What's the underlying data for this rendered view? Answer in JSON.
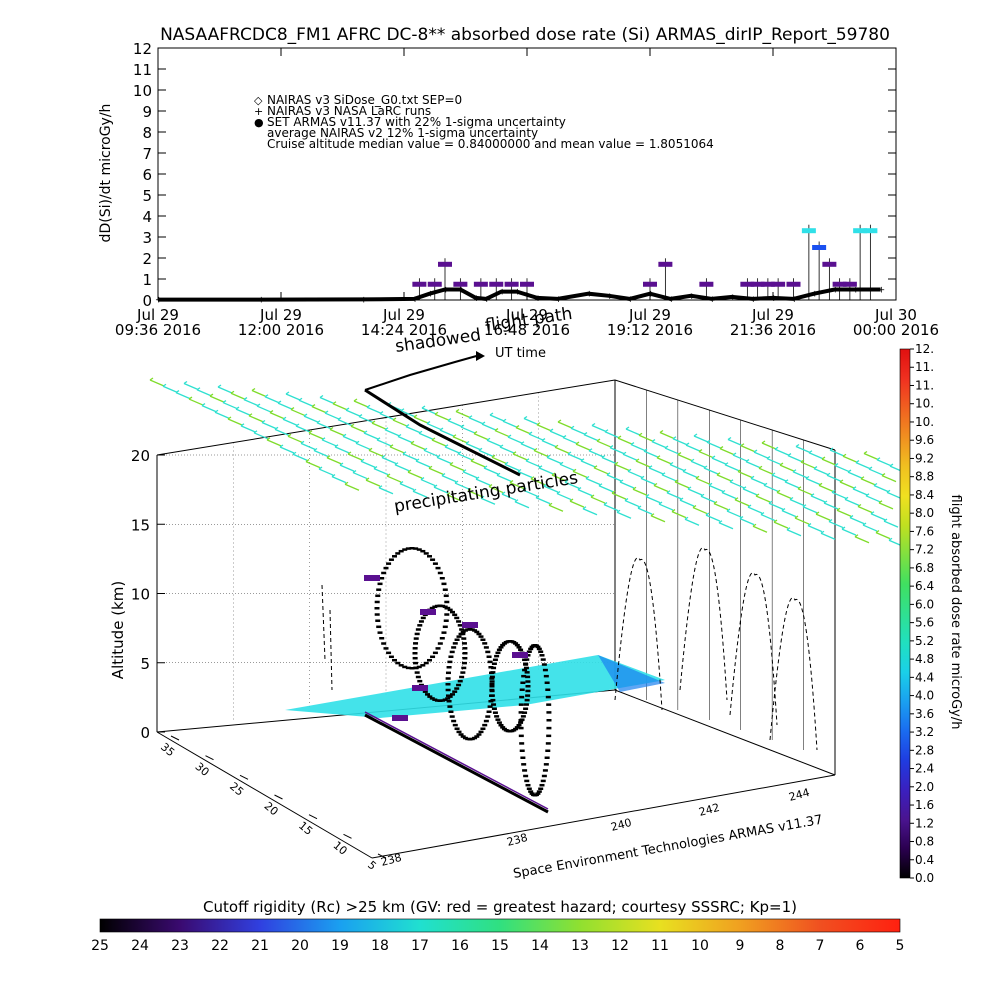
{
  "title": "NASAAFRCDC8_FM1 AFRC DC-8** absorbed dose rate (Si) ARMAS_dirIP_Report_59780",
  "top_chart": {
    "ylabel": "dD(Si)/dt microGy/h",
    "yticks": [
      "0",
      "1",
      "2",
      "3",
      "4",
      "5",
      "6",
      "7",
      "8",
      "9",
      "10",
      "11",
      "12"
    ],
    "xticks": [
      {
        "line1": "Jul 29",
        "line2": "09:36 2016"
      },
      {
        "line1": "Jul 29",
        "line2": "12:00 2016"
      },
      {
        "line1": "Jul 29",
        "line2": "14:24 2016"
      },
      {
        "line1": "Jul 29",
        "line2": "16:48 2016"
      },
      {
        "line1": "Jul 29",
        "line2": "19:12 2016"
      },
      {
        "line1": "Jul 29",
        "line2": "21:36 2016"
      },
      {
        "line1": "Jul 30",
        "line2": "00:00 2016"
      }
    ],
    "legend": [
      {
        "symbol": "◇",
        "text": "NAIRAS v3 SiDose_G0.txt SEP=0"
      },
      {
        "symbol": "+",
        "text": "NAIRAS v3 NASA LaRC runs"
      },
      {
        "symbol": "●",
        "text": "SET ARMAS v11.37 with 22% 1-sigma uncertainty"
      },
      {
        "symbol": "",
        "text": "average NAIRAS v2 12% 1-sigma uncertainty"
      },
      {
        "symbol": "",
        "text": "Cruise altitude median value = 0.84000000 and mean value = 1.8051064"
      }
    ]
  },
  "chart_data": {
    "type": "line",
    "title": "NASAAFRCDC8_FM1 AFRC DC-8** absorbed dose rate (Si) ARMAS_dirIP_Report_59780",
    "ylabel": "dD(Si)/dt microGy/h",
    "ylim": [
      0,
      12
    ],
    "x_unit": "hours UT from Jul 29 09:36 2016",
    "xlim": [
      0,
      14.4
    ],
    "series": [
      {
        "name": "NAIRAS v3 NASA LaRC runs",
        "x": [
          0.0,
          2.0,
          4.0,
          5.0,
          5.3,
          5.6,
          5.9,
          6.2,
          6.4,
          6.7,
          7.0,
          7.4,
          7.8,
          8.4,
          8.8,
          9.2,
          9.6,
          10.0,
          10.4,
          10.8,
          11.2,
          11.6,
          12.0,
          12.4,
          12.8,
          13.2,
          13.6,
          14.1
        ],
        "y": [
          0.02,
          0.02,
          0.03,
          0.05,
          0.3,
          0.5,
          0.5,
          0.1,
          0.05,
          0.4,
          0.4,
          0.1,
          0.05,
          0.3,
          0.2,
          0.05,
          0.3,
          0.05,
          0.2,
          0.05,
          0.15,
          0.05,
          0.1,
          0.05,
          0.3,
          0.5,
          0.5,
          0.5
        ]
      },
      {
        "name": "SET ARMAS v11.37 with 22% 1-sigma uncertainty",
        "x": [
          5.1,
          5.4,
          5.6,
          5.9,
          6.3,
          6.6,
          6.9,
          7.2,
          9.6,
          9.9,
          10.7,
          11.5,
          11.7,
          11.9,
          12.1,
          12.4,
          12.7,
          12.9,
          13.1,
          13.3,
          13.5,
          13.7,
          13.9
        ],
        "y": [
          0.75,
          0.75,
          1.7,
          0.75,
          0.75,
          0.75,
          0.75,
          0.75,
          0.75,
          1.7,
          0.75,
          0.75,
          0.75,
          0.75,
          0.75,
          0.75,
          3.3,
          2.5,
          1.7,
          0.75,
          0.75,
          3.3,
          3.3
        ]
      }
    ],
    "zaxis_3d": {
      "label": "Altitude (km)",
      "ticks": [
        "0",
        "5",
        "10",
        "15",
        "20"
      ]
    },
    "lat_ticks": [
      "5",
      "10",
      "15",
      "20",
      "25",
      "30",
      "35"
    ],
    "lon_ticks": [
      "238",
      "238",
      "240",
      "242",
      "244"
    ],
    "dose_colorbar": {
      "label": "flight absorbed dose rate microGy/h",
      "ticks": [
        "0.0",
        "0.4",
        "0.8",
        "1.2",
        "1.6",
        "2.0",
        "2.4",
        "2.8",
        "3.2",
        "3.6",
        "4.0",
        "4.4",
        "4.8",
        "5.2",
        "5.6",
        "6.0",
        "6.4",
        "6.8",
        "7.2",
        "7.6",
        "8.0",
        "8.4",
        "8.8",
        "9.2",
        "9.6",
        "10.",
        "10.",
        "11.",
        "11.",
        "12."
      ]
    },
    "rigidity_colorbar": {
      "label": "Cutoff rigidity (Rc) >25 km (GV: red = greatest hazard; courtesy SSSRC; Kp=1)",
      "ticks": [
        "25",
        "24",
        "23",
        "22",
        "21",
        "20",
        "19",
        "18",
        "17",
        "16",
        "15",
        "14",
        "13",
        "12",
        "11",
        "10",
        "9",
        "8",
        "7",
        "6",
        "5"
      ]
    }
  },
  "annotations": {
    "shadowed": "shadowed",
    "flight_path": "flight path",
    "ut_time": "UT time",
    "precipitating": "precipitating particles",
    "credit": "Space Environment Technologies ARMAS v11.37"
  },
  "colors": {
    "dose_bar": [
      "#000000",
      "#2b0050",
      "#4a1490",
      "#3a20c0",
      "#1f3ce0",
      "#1a6cf0",
      "#1aa0f0",
      "#1ad0e8",
      "#20e0c0",
      "#30e090",
      "#40e060",
      "#80e040",
      "#c0e020",
      "#f0e020",
      "#f0c020",
      "#f09020",
      "#f06020",
      "#f03020",
      "#e01010"
    ],
    "rigidity_bar": [
      "#000000",
      "#3a0a70",
      "#3040e0",
      "#1aa0f0",
      "#20e0d0",
      "#30e080",
      "#90e030",
      "#e8e020",
      "#f0a020",
      "#f05020",
      "#ff2010"
    ],
    "arrow_green": "#7fdc2a",
    "arrow_cyan": "#2fe0d0",
    "armas_point": "#5a1090",
    "armas_high": "#1a50f0",
    "armas_max": "#30e0e8"
  }
}
